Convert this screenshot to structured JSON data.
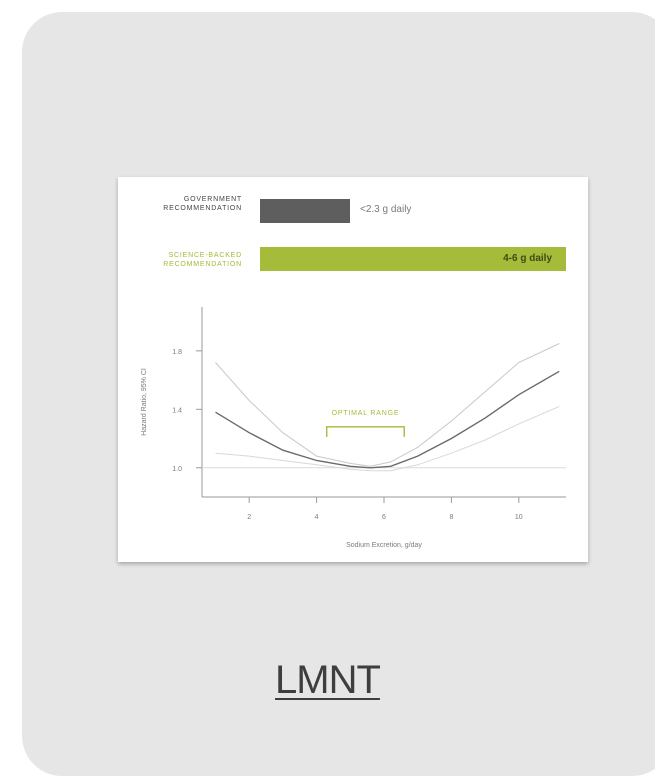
{
  "card": {
    "background": "#e6e6e6"
  },
  "figure": {
    "recommendations": [
      {
        "label_line1": "GOVERNMENT",
        "label_line2": "RECOMMENDATION",
        "value": "<2.3 g daily",
        "color": "#5e5e5e"
      },
      {
        "label_line1": "SCIENCE-BACKED",
        "label_line2": "RECOMMENDATION",
        "value": "4-6 g daily",
        "color": "#a5bb3a"
      }
    ]
  },
  "chart_data": {
    "type": "line",
    "xlabel": "Sodium Excretion, g/day",
    "ylabel": "Hazard Ratio, 95% CI",
    "xlim": [
      0.6,
      11.4
    ],
    "ylim": [
      0.8,
      2.1
    ],
    "x_ticks": [
      2,
      4,
      6,
      8,
      10
    ],
    "y_ticks": [
      1.0,
      1.4,
      1.8
    ],
    "y_tick_labels": [
      "1.0",
      "1.4",
      "1.8"
    ],
    "annotation": {
      "label": "OPTIMAL RANGE",
      "x_range": [
        4.3,
        6.6
      ],
      "y": 1.28,
      "color": "#a5bb3a"
    },
    "reference_line": 1.0,
    "series": [
      {
        "role": "estimate",
        "color": "#6a6a6a",
        "x": [
          1,
          2,
          3,
          4,
          5,
          5.6,
          6.2,
          7,
          8,
          9,
          10,
          11.2
        ],
        "y": [
          1.38,
          1.24,
          1.12,
          1.05,
          1.01,
          1.0,
          1.01,
          1.08,
          1.2,
          1.34,
          1.5,
          1.66
        ]
      },
      {
        "role": "upper-ci",
        "color": "#c8c8c8",
        "x": [
          1,
          2,
          3,
          4,
          5,
          5.6,
          6.2,
          7,
          8,
          9,
          10,
          11.2
        ],
        "y": [
          1.72,
          1.46,
          1.24,
          1.08,
          1.03,
          1.01,
          1.04,
          1.14,
          1.32,
          1.52,
          1.72,
          1.85
        ]
      },
      {
        "role": "lower-ci",
        "color": "#d8d8d8",
        "x": [
          1,
          2,
          3,
          4,
          5,
          5.6,
          6.2,
          7,
          8,
          9,
          10,
          11.2
        ],
        "y": [
          1.1,
          1.08,
          1.05,
          1.02,
          0.99,
          0.98,
          0.98,
          1.02,
          1.1,
          1.19,
          1.3,
          1.42
        ]
      }
    ]
  },
  "brand": {
    "link_text": "LMNT"
  }
}
